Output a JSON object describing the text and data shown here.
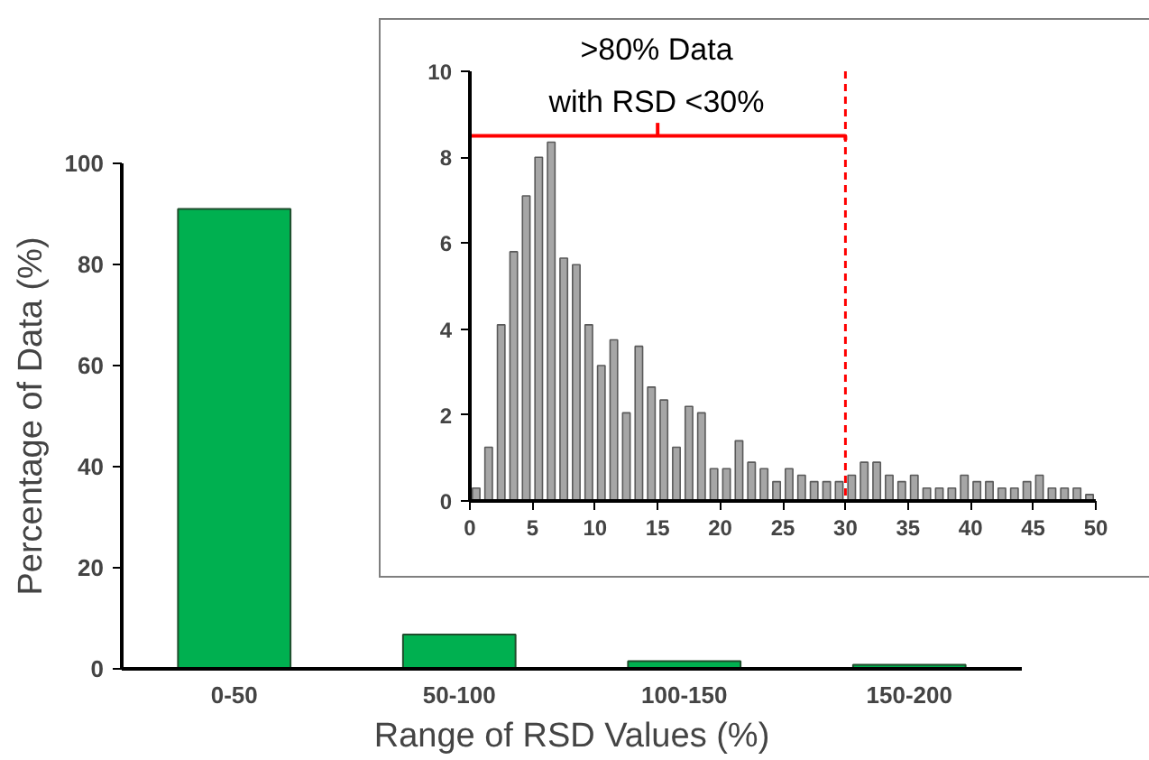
{
  "chart_data": [
    {
      "type": "bar",
      "xlabel": "Range of RSD Values (%)",
      "ylabel": "Percentage of Data (%)",
      "categories": [
        "0-50",
        "50-100",
        "100-150",
        "150-200"
      ],
      "values": [
        91,
        6.8,
        1.5,
        0.8
      ],
      "color": "#00b050",
      "ylim": [
        0,
        100
      ],
      "yticks": [
        0,
        20,
        40,
        60,
        80,
        100
      ],
      "grid": false
    },
    {
      "type": "histogram",
      "bins": [
        0,
        1,
        2,
        3,
        4,
        5,
        6,
        7,
        8,
        9,
        10,
        11,
        12,
        13,
        14,
        15,
        16,
        17,
        18,
        19,
        20,
        21,
        22,
        23,
        24,
        25,
        26,
        27,
        28,
        29,
        30,
        31,
        32,
        33,
        34,
        35,
        36,
        37,
        38,
        39,
        40,
        41,
        42,
        43,
        44,
        45,
        46,
        47,
        48,
        49,
        50
      ],
      "values": [
        0.3,
        1.25,
        4.1,
        5.8,
        7.1,
        8.0,
        8.35,
        5.65,
        5.5,
        4.1,
        3.15,
        3.75,
        2.05,
        3.6,
        2.65,
        2.35,
        1.25,
        2.2,
        2.05,
        0.75,
        0.75,
        1.4,
        0.9,
        0.75,
        0.45,
        0.75,
        0.6,
        0.45,
        0.45,
        0.45,
        0.6,
        0.9,
        0.9,
        0.6,
        0.45,
        0.6,
        0.3,
        0.3,
        0.3,
        0.6,
        0.45,
        0.45,
        0.3,
        0.3,
        0.45,
        0.6,
        0.3,
        0.3,
        0.3,
        0.15
      ],
      "color": "#a6a6a6",
      "xlim": [
        0,
        50
      ],
      "ylim": [
        0,
        10
      ],
      "xticks": [
        0,
        5,
        10,
        15,
        20,
        25,
        30,
        35,
        40,
        45,
        50
      ],
      "yticks": [
        0,
        2,
        4,
        6,
        8,
        10
      ],
      "grid": false,
      "annotations": [
        ">80% Data\nwith RSD <30%"
      ],
      "ref_lines": [
        {
          "axis": "x",
          "value": 30,
          "color": "#ff0000",
          "line_style": "dashed"
        }
      ]
    }
  ]
}
